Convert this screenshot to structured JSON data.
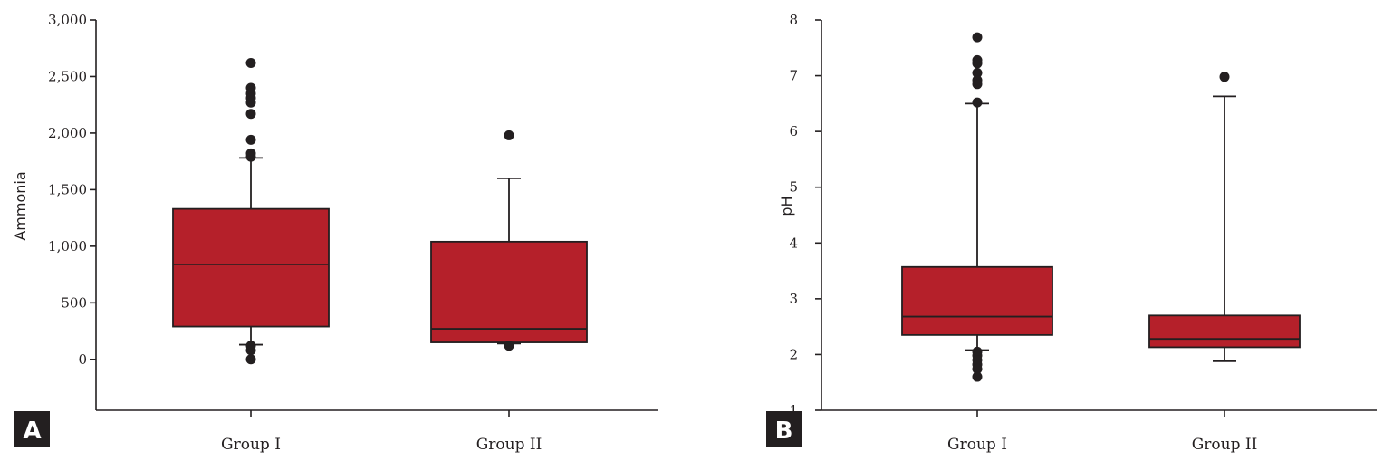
{
  "colors": {
    "box": "#b5202a",
    "ink": "#231f20",
    "badge_bg": "#231f20",
    "badge_text": "#ffffff"
  },
  "panels": [
    {
      "badge": "A"
    },
    {
      "badge": "B"
    }
  ],
  "chart_data": [
    {
      "type": "box",
      "panel": "A",
      "title": "",
      "xlabel": "",
      "ylabel": "Ammonia",
      "categories": [
        "Group I",
        "Group II"
      ],
      "ylim": [
        -450,
        3000
      ],
      "yticks": [
        0,
        500,
        1000,
        1500,
        2000,
        2500,
        3000
      ],
      "ytick_labels": [
        "0",
        "500",
        "1,000",
        "1,500",
        "2,000",
        "2,500",
        "3,000"
      ],
      "boxes": [
        {
          "category": "Group I",
          "whisker_low": 130,
          "q1": 290,
          "median": 840,
          "q3": 1330,
          "whisker_high": 1780,
          "outliers": [
            2620,
            2400,
            2350,
            2310,
            2270,
            2170,
            1940,
            1820,
            1790,
            120,
            80,
            0
          ]
        },
        {
          "category": "Group II",
          "whisker_low": 140,
          "q1": 150,
          "median": 270,
          "q3": 1040,
          "whisker_high": 1600,
          "outliers": [
            1980,
            120
          ]
        }
      ]
    },
    {
      "type": "box",
      "panel": "B",
      "title": "",
      "xlabel": "",
      "ylabel": "pH",
      "categories": [
        "Group I",
        "Group II"
      ],
      "ylim": [
        1,
        8
      ],
      "yticks": [
        1,
        2,
        3,
        4,
        5,
        6,
        7,
        8
      ],
      "ytick_labels": [
        "1",
        "2",
        "3",
        "4",
        "5",
        "6",
        "7",
        "8"
      ],
      "boxes": [
        {
          "category": "Group I",
          "whisker_low": 2.08,
          "q1": 2.35,
          "median": 2.68,
          "q3": 3.57,
          "whisker_high": 6.5,
          "outliers": [
            7.69,
            7.28,
            7.22,
            7.05,
            6.92,
            6.85,
            6.52,
            2.05,
            1.98,
            1.9,
            1.82,
            1.74,
            1.6
          ]
        },
        {
          "category": "Group II",
          "whisker_low": 1.88,
          "q1": 2.13,
          "median": 2.28,
          "q3": 2.7,
          "whisker_high": 6.63,
          "outliers": [
            6.98
          ]
        }
      ]
    }
  ]
}
